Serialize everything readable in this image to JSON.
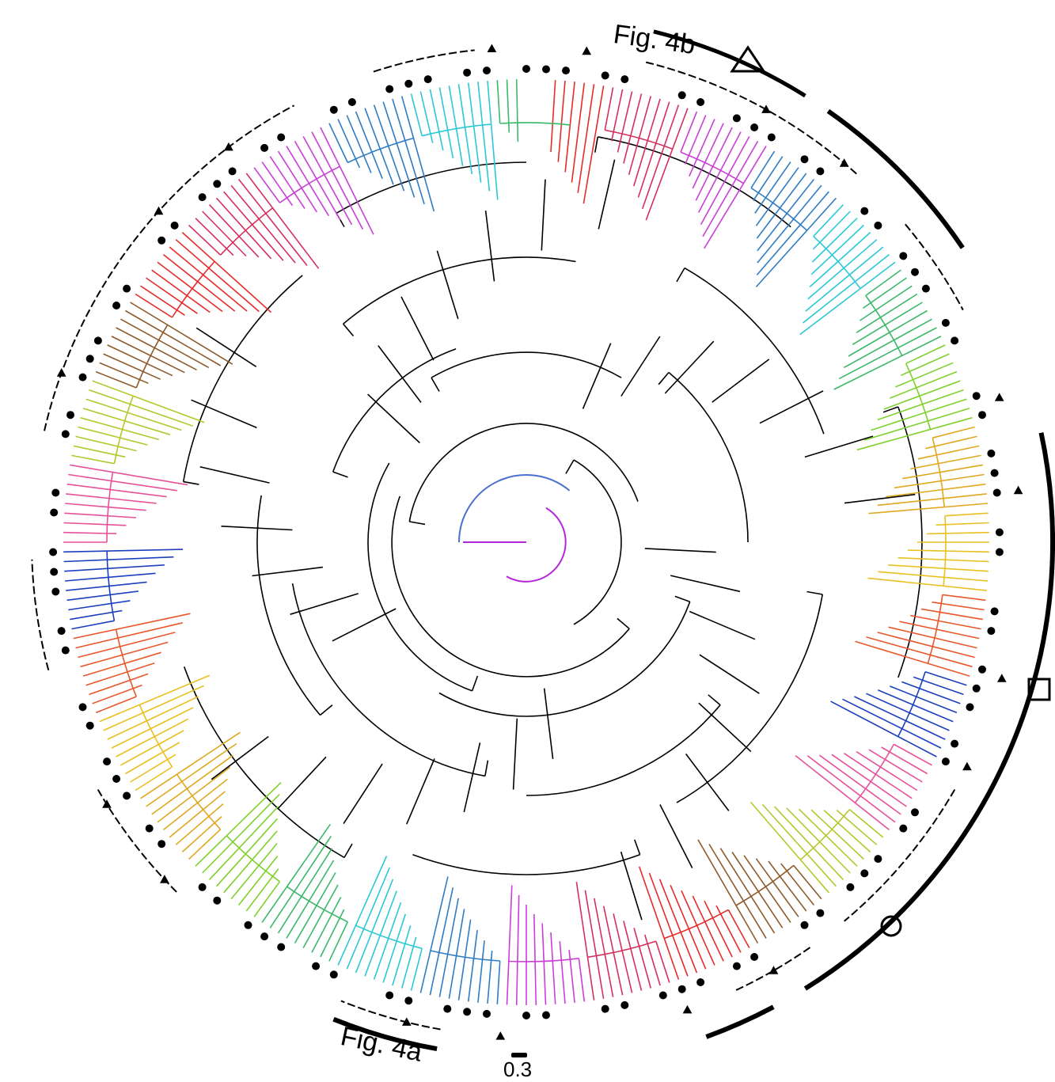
{
  "labels": {
    "fig4b": "Fig. 4b",
    "fig4a": "Fig. 4a",
    "scale": "0.3"
  },
  "clade_colors": [
    "#e52b2b",
    "#d62f5f",
    "#c93ed8",
    "#2e7cc4",
    "#2bc8d6",
    "#3bb86a",
    "#7ed12b",
    "#e0a820",
    "#e8c020",
    "#e9572b",
    "#1b3fbf",
    "#e8509a",
    "#b5c72a",
    "#8e5a2b"
  ],
  "markers": {
    "dot": "filled-circle",
    "filled_triangle": "filled-triangle",
    "open_triangle": "open-triangle",
    "open_square": "open-square",
    "open_circle": "open-circle"
  },
  "legend_symbols": [
    "open-triangle",
    "open-square",
    "open-circle"
  ]
}
